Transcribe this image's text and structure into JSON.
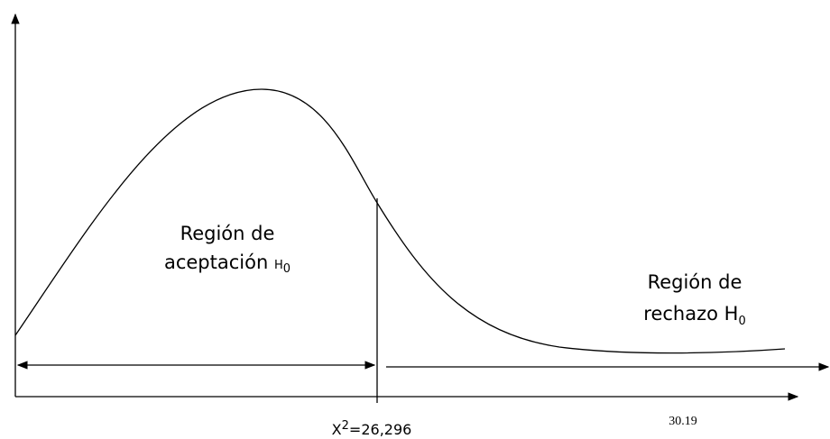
{
  "acceptance": {
    "line1": "Región de",
    "line2": "aceptación",
    "symbol": "H",
    "subscript": "0"
  },
  "rejection": {
    "line1": "Región de",
    "line2": "rechazo",
    "symbol": "H",
    "subscript": "0"
  },
  "critical": {
    "base": "X",
    "superscript": "2",
    "value": "=26,296"
  },
  "observed": "30.19"
}
